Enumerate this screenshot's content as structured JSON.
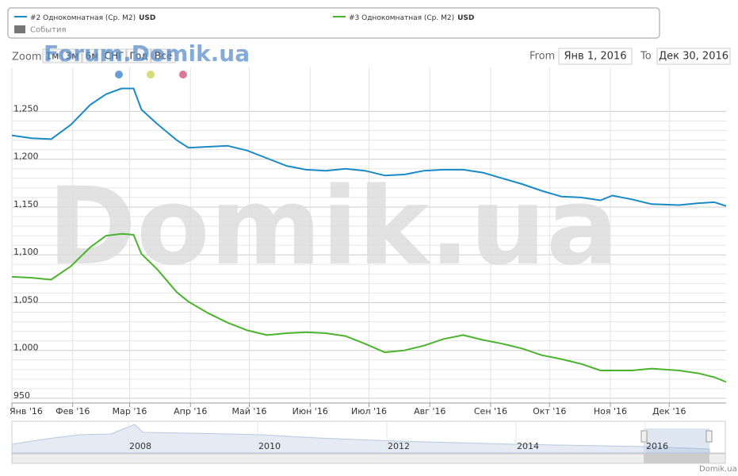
{
  "chart_data": {
    "type": "line",
    "legend": {
      "events": "События"
    },
    "zoom": {
      "label": "Zoom",
      "buttons": [
        "1м",
        "3м",
        "6м",
        "СНГ",
        "Год",
        "Всё"
      ]
    },
    "range": {
      "from_label": "From",
      "from": "Янв 1, 2016",
      "to_label": "To",
      "to": "Дек 30, 2016"
    },
    "watermarks": {
      "forum": "Forum.Domik.ua",
      "main": "Domik.ua",
      "credit": "Domik.ua"
    },
    "navigator": {
      "years": [
        "2008",
        "2010",
        "2012",
        "2014",
        "2016"
      ]
    },
    "x": [
      0,
      10,
      20,
      30,
      40,
      48,
      56,
      62,
      66,
      74,
      84,
      90,
      100,
      110,
      120,
      130,
      140,
      150,
      160,
      170,
      180,
      190,
      200,
      210,
      220,
      230,
      240,
      250,
      260,
      270,
      280,
      290,
      300,
      306,
      316,
      326,
      340,
      350,
      358,
      364
    ],
    "xlim": [
      0,
      364
    ],
    "xticks": [
      {
        "value": 0,
        "label": "Янв '16"
      },
      {
        "value": 31,
        "label": "Фев '16"
      },
      {
        "value": 60,
        "label": "Мар '16"
      },
      {
        "value": 91,
        "label": "Апр '16"
      },
      {
        "value": 121,
        "label": "Май '16"
      },
      {
        "value": 152,
        "label": "Июн '16"
      },
      {
        "value": 182,
        "label": "Июл '16"
      },
      {
        "value": 213,
        "label": "Авг '16"
      },
      {
        "value": 244,
        "label": "Сен '16"
      },
      {
        "value": 274,
        "label": "Окт '16"
      },
      {
        "value": 305,
        "label": "Ноя '16"
      },
      {
        "value": 335,
        "label": "Дек '16"
      }
    ],
    "ylim": [
      945,
      1296
    ],
    "yticks": [
      950,
      {
        "value": 1000,
        "label": "1,000"
      },
      {
        "value": 1050,
        "label": "1,050"
      },
      {
        "value": 1100,
        "label": "1,100"
      },
      {
        "value": 1150,
        "label": "1,150"
      },
      {
        "value": 1200,
        "label": "1,200"
      },
      {
        "value": 1250,
        "label": "1,250"
      }
    ],
    "grid": true,
    "series": [
      {
        "name": "#2 Однокомнатная (Ср. М2)",
        "unit": "USD",
        "color": "#1a8ac6",
        "values": [
          1225,
          1222,
          1221,
          1236,
          1257,
          1268,
          1274,
          1274,
          1252,
          1237,
          1220,
          1212,
          1213,
          1214,
          1209,
          1201,
          1193,
          1189,
          1188,
          1190,
          1188,
          1183,
          1184,
          1188,
          1189,
          1189,
          1186,
          1180,
          1174,
          1167,
          1161,
          1160,
          1157,
          1162,
          1158,
          1153,
          1152,
          1154,
          1155,
          1151
        ]
      },
      {
        "name": "#3 Однокомнатная (Ср. М2)",
        "unit": "USD",
        "color": "#4cb32e",
        "values": [
          1077,
          1076,
          1074,
          1088,
          1108,
          1120,
          1122,
          1121,
          1101,
          1085,
          1061,
          1051,
          1039,
          1029,
          1021,
          1016,
          1018,
          1019,
          1018,
          1015,
          1007,
          998,
          1000,
          1005,
          1012,
          1016,
          1011,
          1007,
          1002,
          995,
          991,
          986,
          979,
          979,
          979,
          981,
          979,
          976,
          972,
          967
        ]
      }
    ]
  }
}
